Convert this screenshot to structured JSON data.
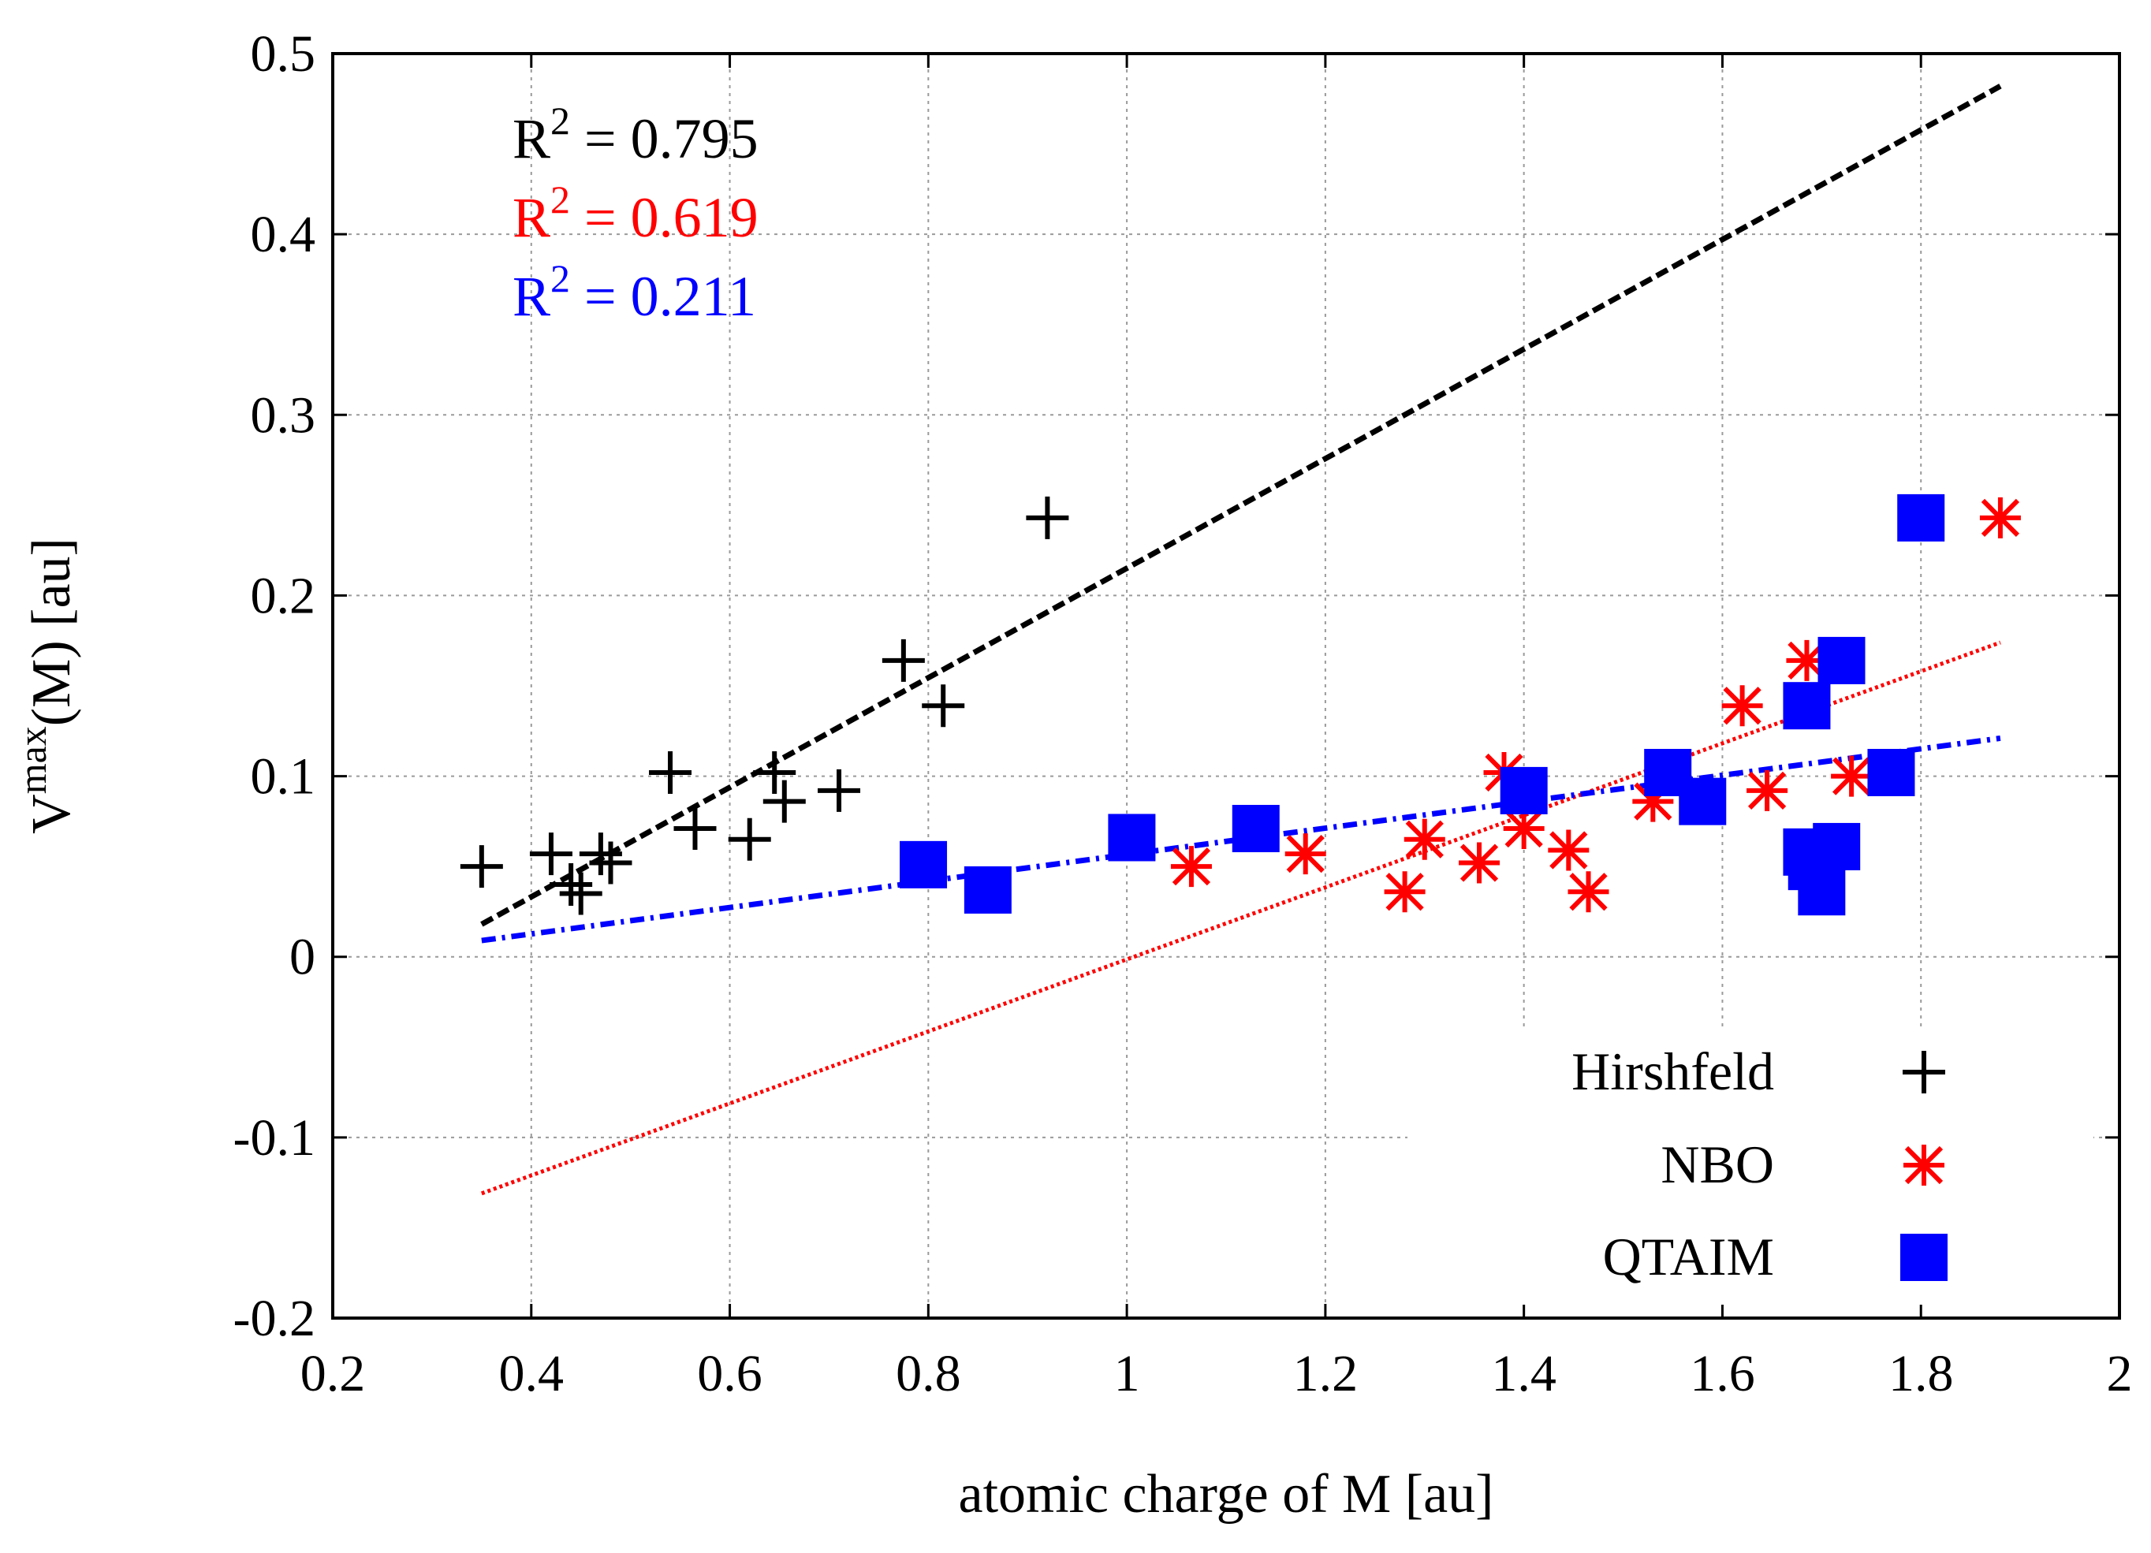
{
  "chart_data": {
    "type": "scatter",
    "title": "",
    "xlabel": "atomic charge of M [au]",
    "ylabel": {
      "base": "V",
      "sup": "max",
      "rest": "(M) [au]"
    },
    "xlim": [
      0.2,
      2.0
    ],
    "ylim": [
      -0.2,
      0.5
    ],
    "xticks": [
      0.2,
      0.4,
      0.6,
      0.8,
      1.0,
      1.2,
      1.4,
      1.6,
      1.8,
      2.0
    ],
    "xtick_labels": [
      "0.2",
      "0.4",
      "0.6",
      "0.8",
      "1",
      "1.2",
      "1.4",
      "1.6",
      "1.8",
      "2"
    ],
    "yticks": [
      -0.2,
      -0.1,
      0.0,
      0.1,
      0.2,
      0.3,
      0.4,
      0.5
    ],
    "ytick_labels": [
      "-0.2",
      "-0.1",
      "0",
      "0.1",
      "0.2",
      "0.3",
      "0.4",
      "0.5"
    ],
    "grid": true,
    "legend_position": "bottom-right",
    "series": [
      {
        "name": "Hirshfeld",
        "marker": "plus",
        "color": "#000000",
        "r2_label": "R",
        "r2_sup": "2",
        "r2_value": " = 0.795",
        "points": [
          [
            0.35,
            0.05
          ],
          [
            0.42,
            0.057
          ],
          [
            0.44,
            0.04
          ],
          [
            0.45,
            0.035
          ],
          [
            0.47,
            0.057
          ],
          [
            0.48,
            0.052
          ],
          [
            0.54,
            0.102
          ],
          [
            0.565,
            0.071
          ],
          [
            0.62,
            0.065
          ],
          [
            0.645,
            0.102
          ],
          [
            0.655,
            0.086
          ],
          [
            0.71,
            0.092
          ],
          [
            0.775,
            0.164
          ],
          [
            0.815,
            0.139
          ],
          [
            0.92,
            0.243
          ]
        ],
        "fit": {
          "style": "dashed",
          "x": [
            0.35,
            1.88
          ],
          "y": [
            0.018,
            0.482
          ]
        }
      },
      {
        "name": "NBO",
        "marker": "asterisk",
        "color": "#ff0000",
        "r2_label": "R",
        "r2_sup": "2",
        "r2_value": " = 0.619",
        "points": [
          [
            1.065,
            0.05
          ],
          [
            1.18,
            0.057
          ],
          [
            1.28,
            0.036
          ],
          [
            1.3,
            0.065
          ],
          [
            1.355,
            0.052
          ],
          [
            1.38,
            0.102
          ],
          [
            1.4,
            0.071
          ],
          [
            1.445,
            0.059
          ],
          [
            1.465,
            0.036
          ],
          [
            1.53,
            0.086
          ],
          [
            1.62,
            0.139
          ],
          [
            1.645,
            0.092
          ],
          [
            1.685,
            0.164
          ],
          [
            1.73,
            0.1
          ],
          [
            1.88,
            0.243
          ]
        ],
        "fit": {
          "style": "dotted",
          "x": [
            0.35,
            1.88
          ],
          "y": [
            -0.131,
            0.174
          ]
        }
      },
      {
        "name": "QTAIM",
        "marker": "square",
        "color": "#0000ff",
        "r2_label": "R",
        "r2_sup": "2",
        "r2_value": " = 0.211",
        "points": [
          [
            0.795,
            0.051
          ],
          [
            0.86,
            0.037
          ],
          [
            1.005,
            0.066
          ],
          [
            1.13,
            0.071
          ],
          [
            1.4,
            0.092
          ],
          [
            1.545,
            0.102
          ],
          [
            1.58,
            0.086
          ],
          [
            1.685,
            0.139
          ],
          [
            1.685,
            0.058
          ],
          [
            1.69,
            0.05
          ],
          [
            1.7,
            0.036
          ],
          [
            1.715,
            0.061
          ],
          [
            1.72,
            0.164
          ],
          [
            1.77,
            0.102
          ],
          [
            1.8,
            0.243
          ]
        ],
        "fit": {
          "style": "dashdot",
          "x": [
            0.35,
            1.88
          ],
          "y": [
            0.009,
            0.121
          ]
        }
      }
    ]
  }
}
